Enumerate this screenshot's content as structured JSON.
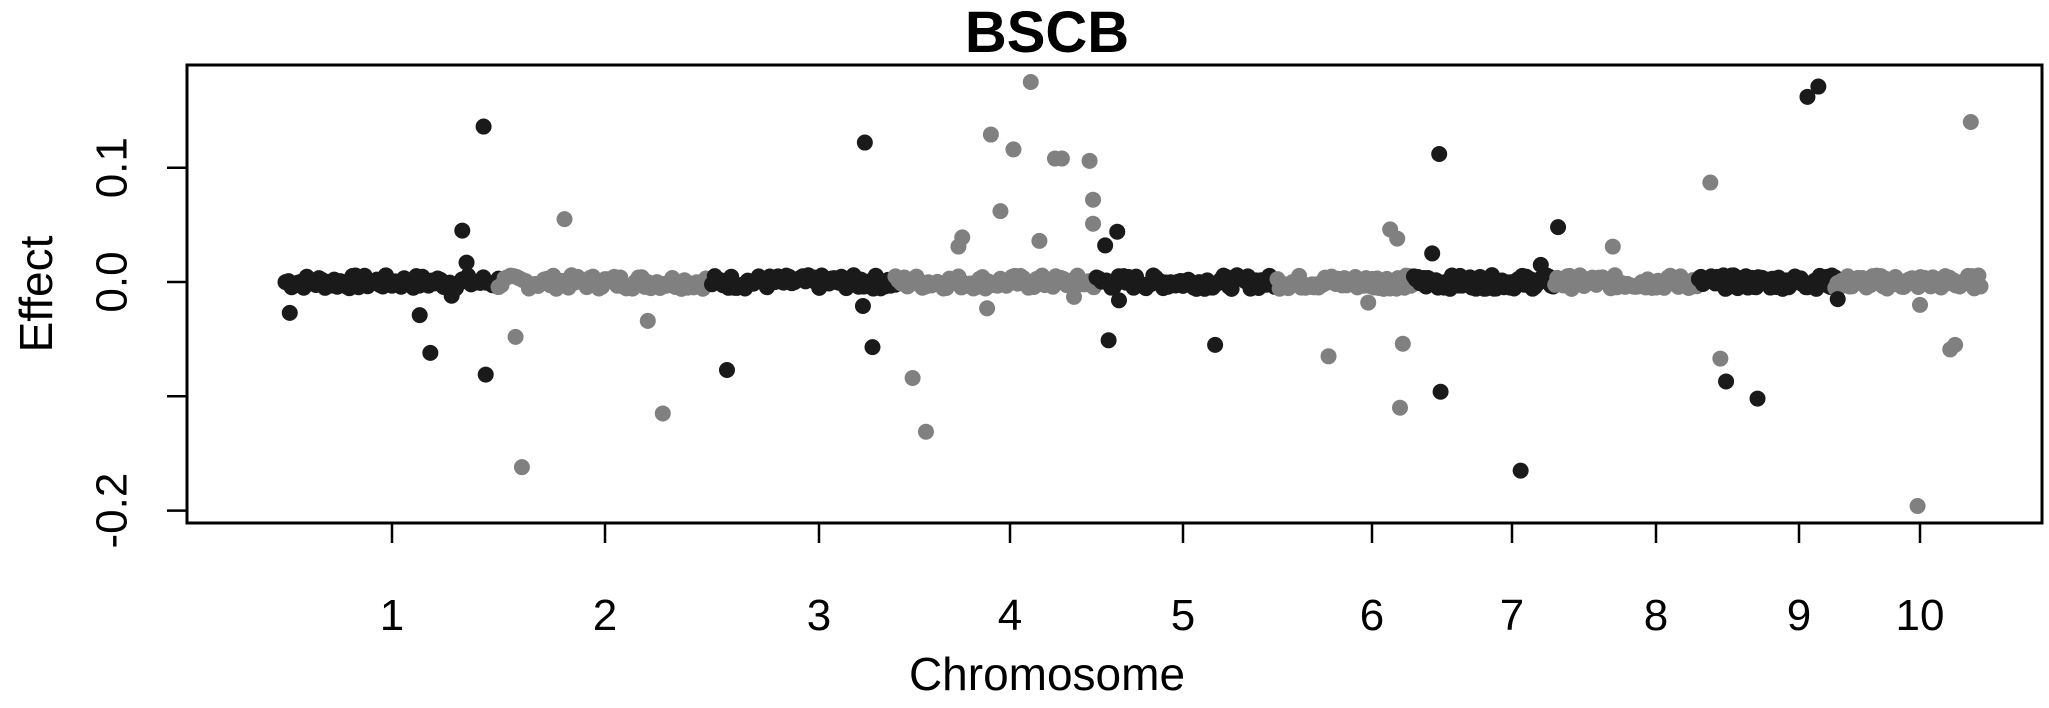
{
  "chart_data": {
    "type": "scatter",
    "title": "BSCB",
    "xlabel": "Chromosome",
    "ylabel": "Effect",
    "ylim": [
      -0.2,
      0.19
    ],
    "xlim": [
      0.5,
      10.5
    ],
    "grid": false,
    "legend": "none",
    "y_ticks": [
      {
        "value": -0.2,
        "label": "-0.2"
      },
      {
        "value": -0.1,
        "label": ""
      },
      {
        "value": 0.0,
        "label": "0.0"
      },
      {
        "value": 0.1,
        "label": "0.1"
      }
    ],
    "x_ticks": [
      {
        "value": 1,
        "label": "1"
      },
      {
        "value": 2,
        "label": "2"
      },
      {
        "value": 3,
        "label": "3"
      },
      {
        "value": 4,
        "label": "4"
      },
      {
        "value": 5,
        "label": "5"
      },
      {
        "value": 6,
        "label": "6"
      },
      {
        "value": 7,
        "label": "7"
      },
      {
        "value": 8,
        "label": "8"
      },
      {
        "value": 9,
        "label": "9"
      },
      {
        "value": 10,
        "label": "10"
      }
    ],
    "colors": {
      "dark": "#1a1a1a",
      "light": "#808080"
    },
    "chromosome_ranges": [
      {
        "chr": 1,
        "start": 0.5,
        "end": 1.5,
        "color": "dark"
      },
      {
        "chr": 2,
        "start": 1.5,
        "end": 2.5,
        "color": "light"
      },
      {
        "chr": 3,
        "start": 2.5,
        "end": 3.4,
        "color": "dark"
      },
      {
        "chr": 4,
        "start": 3.4,
        "end": 4.5,
        "color": "light"
      },
      {
        "chr": 5,
        "start": 4.5,
        "end": 5.5,
        "color": "dark"
      },
      {
        "chr": 6,
        "start": 5.5,
        "end": 6.3,
        "color": "light"
      },
      {
        "chr": 7,
        "start": 6.3,
        "end": 7.3,
        "color": "dark"
      },
      {
        "chr": 8,
        "start": 7.3,
        "end": 8.3,
        "color": "light"
      },
      {
        "chr": 9,
        "start": 8.3,
        "end": 9.3,
        "color": "dark"
      },
      {
        "chr": 10,
        "start": 9.3,
        "end": 10.5,
        "color": "light"
      }
    ],
    "points": [
      {
        "x": 0.52,
        "y": -0.027,
        "color": "dark"
      },
      {
        "x": 1.13,
        "y": -0.029,
        "color": "dark"
      },
      {
        "x": 1.18,
        "y": -0.062,
        "color": "dark"
      },
      {
        "x": 1.33,
        "y": 0.045,
        "color": "dark"
      },
      {
        "x": 1.35,
        "y": 0.017,
        "color": "dark"
      },
      {
        "x": 1.43,
        "y": 0.136,
        "color": "dark"
      },
      {
        "x": 1.44,
        "y": -0.081,
        "color": "dark"
      },
      {
        "x": 1.28,
        "y": -0.012,
        "color": "dark"
      },
      {
        "x": 1.58,
        "y": -0.048,
        "color": "light"
      },
      {
        "x": 1.61,
        "y": -0.162,
        "color": "light"
      },
      {
        "x": 1.81,
        "y": 0.055,
        "color": "light"
      },
      {
        "x": 2.2,
        "y": -0.034,
        "color": "light"
      },
      {
        "x": 2.27,
        "y": -0.115,
        "color": "light"
      },
      {
        "x": 2.57,
        "y": -0.077,
        "color": "dark"
      },
      {
        "x": 3.24,
        "y": 0.122,
        "color": "dark"
      },
      {
        "x": 3.23,
        "y": -0.021,
        "color": "dark"
      },
      {
        "x": 3.28,
        "y": -0.057,
        "color": "dark"
      },
      {
        "x": 3.49,
        "y": -0.084,
        "color": "light"
      },
      {
        "x": 3.56,
        "y": -0.131,
        "color": "light"
      },
      {
        "x": 3.73,
        "y": 0.031,
        "color": "light"
      },
      {
        "x": 3.75,
        "y": 0.039,
        "color": "light"
      },
      {
        "x": 3.9,
        "y": 0.129,
        "color": "light"
      },
      {
        "x": 3.95,
        "y": 0.062,
        "color": "light"
      },
      {
        "x": 4.02,
        "y": 0.116,
        "color": "light"
      },
      {
        "x": 4.12,
        "y": 0.175,
        "color": "light"
      },
      {
        "x": 4.17,
        "y": 0.036,
        "color": "light"
      },
      {
        "x": 4.26,
        "y": 0.108,
        "color": "light"
      },
      {
        "x": 4.3,
        "y": 0.108,
        "color": "light"
      },
      {
        "x": 3.88,
        "y": -0.023,
        "color": "light"
      },
      {
        "x": 4.37,
        "y": -0.013,
        "color": "light"
      },
      {
        "x": 4.46,
        "y": 0.106,
        "color": "light"
      },
      {
        "x": 4.48,
        "y": 0.072,
        "color": "light"
      },
      {
        "x": 4.48,
        "y": 0.051,
        "color": "light"
      },
      {
        "x": 4.55,
        "y": 0.032,
        "color": "dark"
      },
      {
        "x": 4.62,
        "y": 0.044,
        "color": "dark"
      },
      {
        "x": 4.57,
        "y": -0.051,
        "color": "dark"
      },
      {
        "x": 4.63,
        "y": -0.016,
        "color": "dark"
      },
      {
        "x": 5.17,
        "y": -0.055,
        "color": "dark"
      },
      {
        "x": 5.77,
        "y": -0.065,
        "color": "light"
      },
      {
        "x": 5.98,
        "y": -0.018,
        "color": "light"
      },
      {
        "x": 6.13,
        "y": 0.046,
        "color": "light"
      },
      {
        "x": 6.18,
        "y": 0.038,
        "color": "light"
      },
      {
        "x": 6.22,
        "y": -0.054,
        "color": "light"
      },
      {
        "x": 6.2,
        "y": -0.11,
        "color": "light"
      },
      {
        "x": 6.43,
        "y": 0.025,
        "color": "dark"
      },
      {
        "x": 6.48,
        "y": 0.112,
        "color": "dark"
      },
      {
        "x": 6.49,
        "y": -0.096,
        "color": "dark"
      },
      {
        "x": 7.06,
        "y": -0.165,
        "color": "dark"
      },
      {
        "x": 7.32,
        "y": 0.048,
        "color": "dark"
      },
      {
        "x": 7.2,
        "y": 0.015,
        "color": "dark"
      },
      {
        "x": 7.7,
        "y": 0.031,
        "color": "light"
      },
      {
        "x": 8.38,
        "y": 0.087,
        "color": "light"
      },
      {
        "x": 8.45,
        "y": -0.067,
        "color": "light"
      },
      {
        "x": 8.49,
        "y": -0.087,
        "color": "dark"
      },
      {
        "x": 8.71,
        "y": -0.102,
        "color": "dark"
      },
      {
        "x": 9.07,
        "y": 0.162,
        "color": "dark"
      },
      {
        "x": 9.16,
        "y": 0.171,
        "color": "dark"
      },
      {
        "x": 9.32,
        "y": -0.015,
        "color": "dark"
      },
      {
        "x": 9.98,
        "y": -0.196,
        "color": "light"
      },
      {
        "x": 10.0,
        "y": -0.02,
        "color": "light"
      },
      {
        "x": 10.25,
        "y": -0.059,
        "color": "light"
      },
      {
        "x": 10.29,
        "y": -0.055,
        "color": "light"
      },
      {
        "x": 10.42,
        "y": 0.14,
        "color": "light"
      }
    ]
  }
}
